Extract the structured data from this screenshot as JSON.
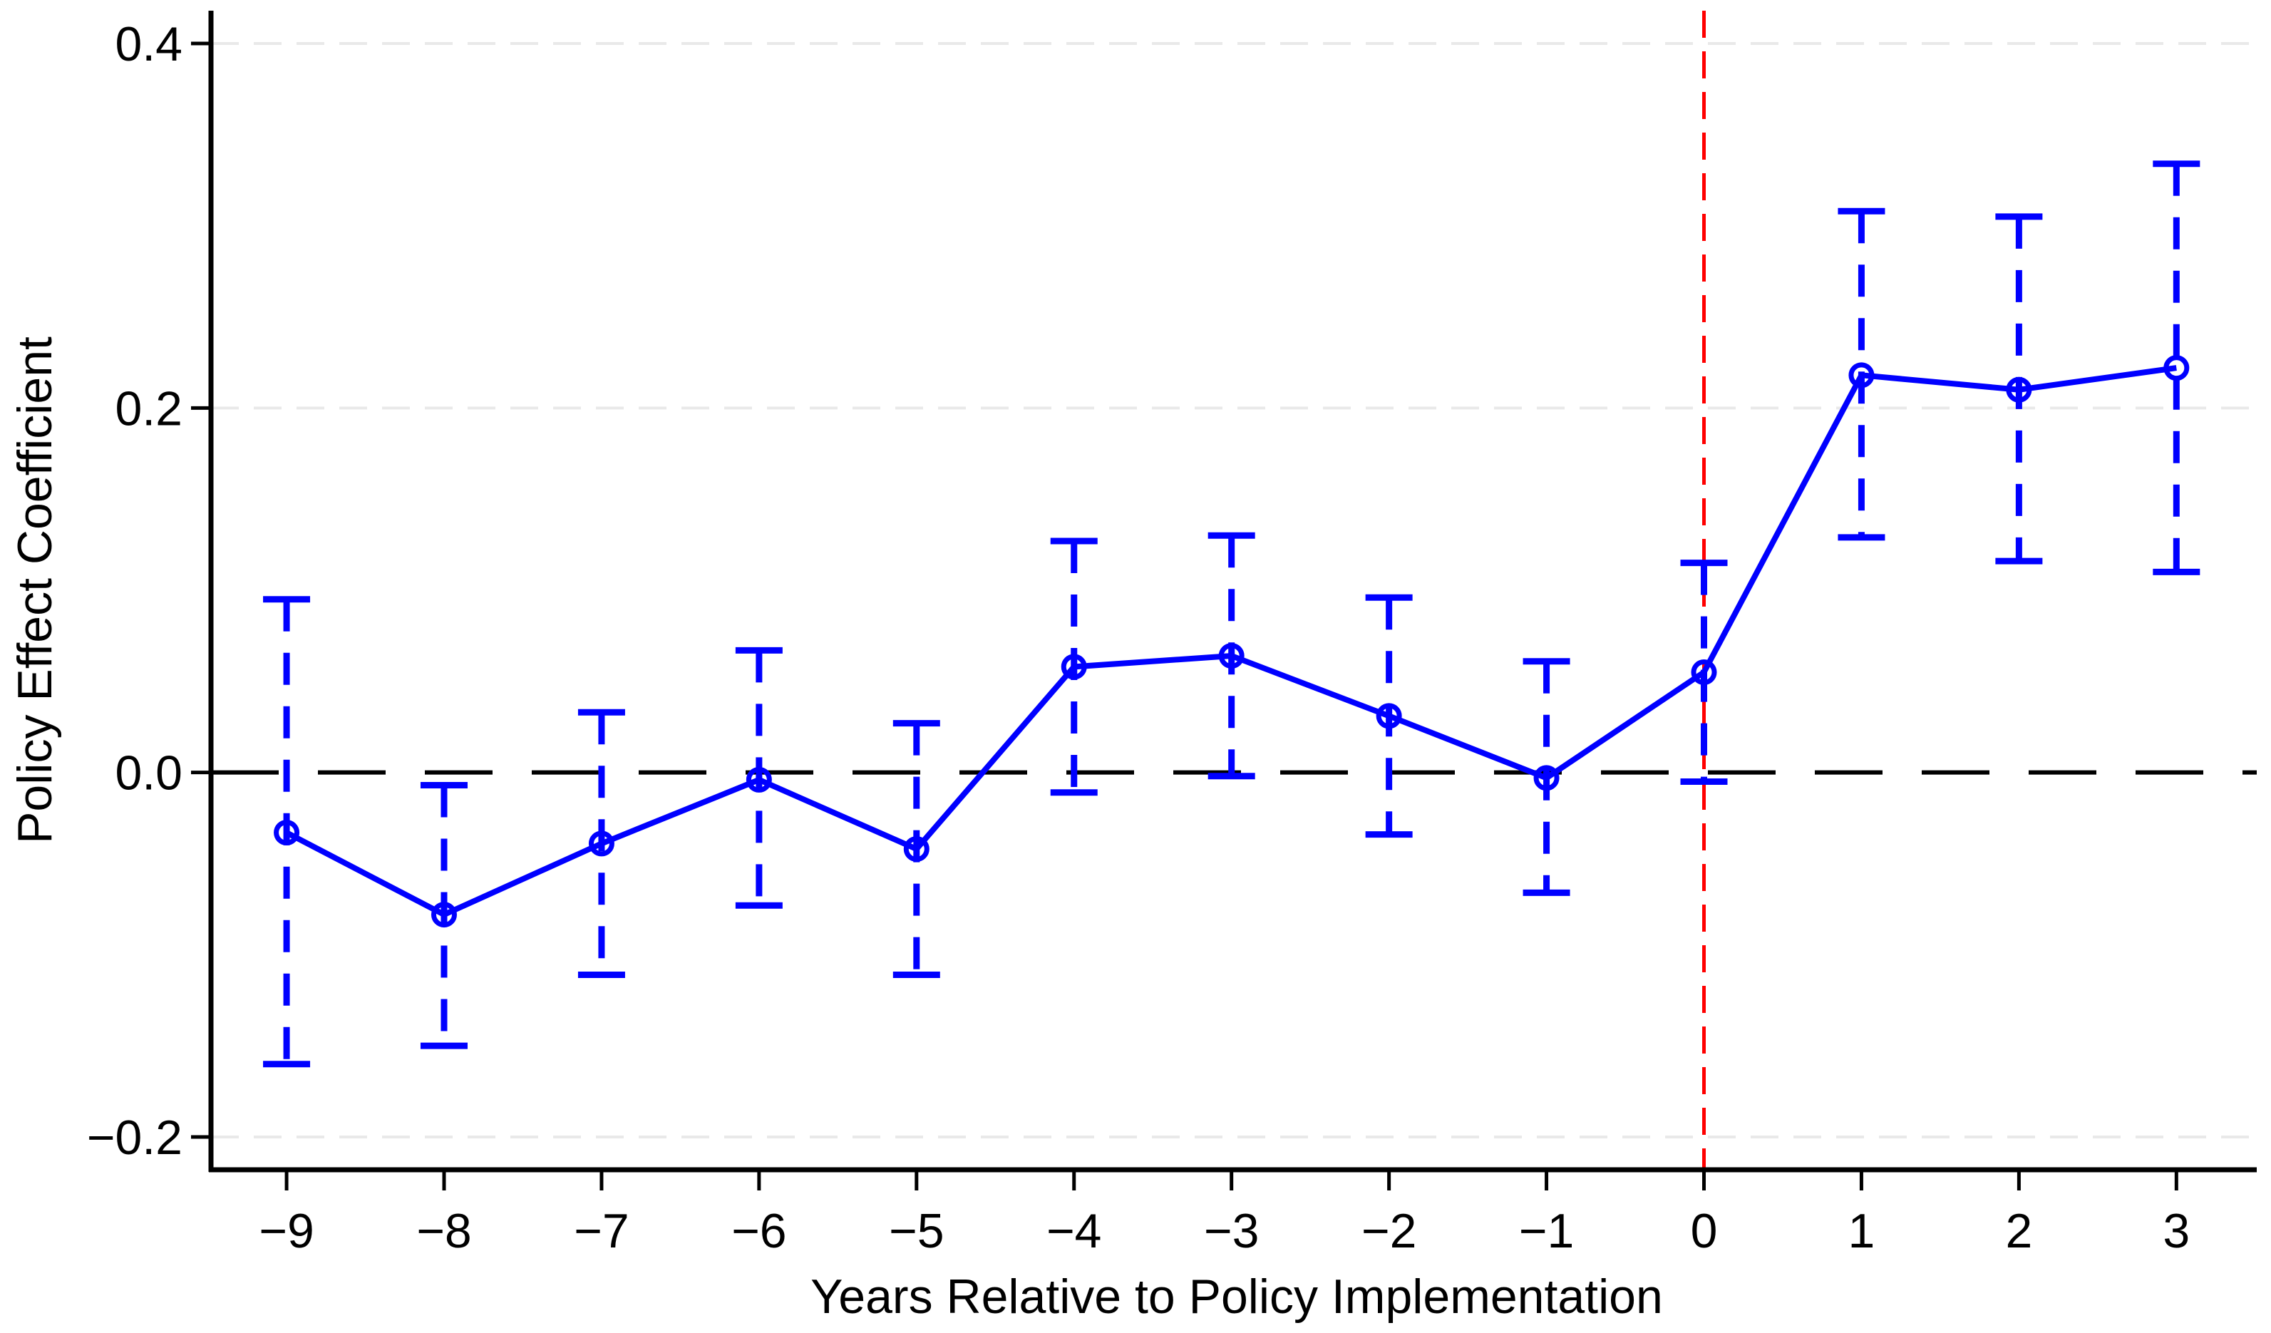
{
  "chart_data": {
    "type": "line",
    "title": "",
    "xlabel": "Years Relative to Policy Implementation",
    "ylabel": "Policy Effect Coefficient",
    "x": [
      -9,
      -8,
      -7,
      -6,
      -5,
      -4,
      -3,
      -2,
      -1,
      0,
      1,
      2,
      3
    ],
    "series": [
      {
        "name": "policy-effect-coefficient",
        "values": [
          -0.033,
          -0.078,
          -0.039,
          -0.004,
          -0.042,
          0.058,
          0.064,
          0.031,
          -0.003,
          0.055,
          0.218,
          0.21,
          0.222
        ],
        "ci_lower": [
          -0.16,
          -0.15,
          -0.111,
          -0.073,
          -0.111,
          -0.011,
          -0.002,
          -0.034,
          -0.066,
          -0.005,
          0.129,
          0.116,
          0.11
        ],
        "ci_upper": [
          0.095,
          -0.007,
          0.033,
          0.067,
          0.027,
          0.127,
          0.13,
          0.096,
          0.061,
          0.115,
          0.308,
          0.305,
          0.334
        ]
      }
    ],
    "x_tick_labels": [
      "−9",
      "−8",
      "−7",
      "−6",
      "−5",
      "−4",
      "−3",
      "−2",
      "−1",
      "0",
      "1",
      "2",
      "3"
    ],
    "y_ticks": [
      0.4,
      0.2,
      0.0,
      -0.2
    ],
    "y_tick_labels": [
      "0.4",
      "0.2",
      "0.0",
      "−0.2"
    ],
    "grid_y_values": [
      0.4,
      0.2,
      -0.2
    ],
    "xlim": [
      -9.48,
      3.51
    ],
    "ylim": [
      -0.218,
      0.418
    ],
    "reference_lines": {
      "vertical_x": 0,
      "horizontal_y": 0
    },
    "legend": "none",
    "grid": "horizontal-dashed",
    "colors": {
      "series": "#0000ff",
      "ci": "#0000ff",
      "vertical_reference": "#ff0000",
      "horizontal_reference": "#000000",
      "gridline": "#e9e9e9",
      "axis": "#000000",
      "background": "#ffffff"
    }
  }
}
